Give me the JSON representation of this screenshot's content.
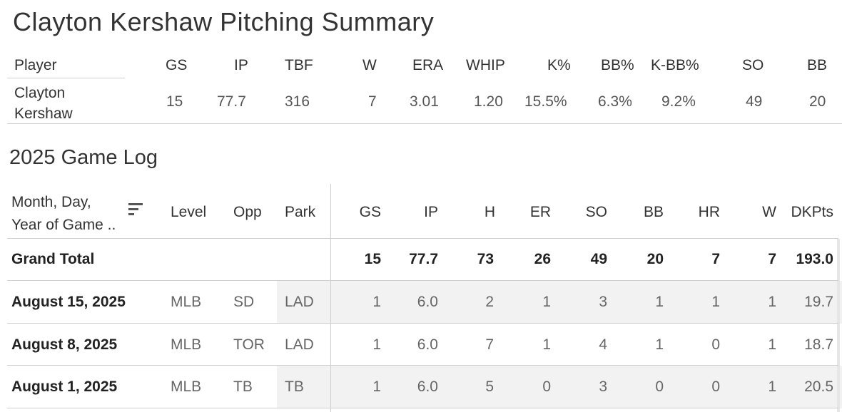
{
  "title": "Clayton Kershaw Pitching Summary",
  "summary": {
    "headers": [
      "Player",
      "GS",
      "IP",
      "TBF",
      "W",
      "ERA",
      "WHIP",
      "K%",
      "BB%",
      "K-BB%",
      "SO",
      "BB"
    ],
    "player_line1": "Clayton",
    "player_line2": "Kershaw",
    "values": [
      "15",
      "77.7",
      "316",
      "7",
      "3.01",
      "1.20",
      "15.5%",
      "6.3%",
      "9.2%",
      "49",
      "20"
    ]
  },
  "game_log_title": "2025 Game Log",
  "game_log": {
    "date_header_line1": "Month, Day,",
    "date_header_line2": "Year of Game ..",
    "headers": [
      "Level",
      "Opp",
      "Park",
      "GS",
      "IP",
      "H",
      "ER",
      "SO",
      "BB",
      "HR",
      "W",
      "DKPts"
    ],
    "grand_total": {
      "label": "Grand Total",
      "values": [
        "15",
        "77.7",
        "73",
        "26",
        "49",
        "20",
        "7",
        "7",
        "193.0"
      ]
    },
    "rows": [
      {
        "date": "August 15, 2025",
        "level": "MLB",
        "opp": "SD",
        "park": "LAD",
        "values": [
          "1",
          "6.0",
          "2",
          "1",
          "3",
          "1",
          "1",
          "1",
          "19.7"
        ]
      },
      {
        "date": "August 8, 2025",
        "level": "MLB",
        "opp": "TOR",
        "park": "LAD",
        "values": [
          "1",
          "6.0",
          "7",
          "1",
          "4",
          "1",
          "0",
          "1",
          "18.7"
        ]
      },
      {
        "date": "August 1, 2025",
        "level": "MLB",
        "opp": "TB",
        "park": "TB",
        "values": [
          "1",
          "6.0",
          "5",
          "0",
          "3",
          "0",
          "0",
          "1",
          "20.5"
        ]
      }
    ]
  },
  "icons": {
    "sort": "sort-descending-icon"
  },
  "colors": {
    "shade": "#f2f2f2",
    "border": "#cfcfcf"
  }
}
